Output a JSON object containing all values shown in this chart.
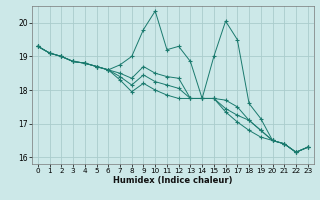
{
  "xlabel": "Humidex (Indice chaleur)",
  "ylabel": "",
  "xlim": [
    -0.5,
    23.5
  ],
  "ylim": [
    15.8,
    20.5
  ],
  "yticks": [
    16,
    17,
    18,
    19,
    20
  ],
  "xticks": [
    0,
    1,
    2,
    3,
    4,
    5,
    6,
    7,
    8,
    9,
    10,
    11,
    12,
    13,
    14,
    15,
    16,
    17,
    18,
    19,
    20,
    21,
    22,
    23
  ],
  "bg_color": "#cce8e8",
  "grid_color": "#aacccc",
  "line_color": "#1a7a6e",
  "lines": [
    [
      19.3,
      19.1,
      19.0,
      18.85,
      18.8,
      18.7,
      18.6,
      18.75,
      19.0,
      19.8,
      20.35,
      19.2,
      19.3,
      18.85,
      17.75,
      19.0,
      20.05,
      19.5,
      17.6,
      17.15,
      16.5,
      16.4,
      16.15,
      16.3
    ],
    [
      19.3,
      19.1,
      19.0,
      18.85,
      18.8,
      18.7,
      18.6,
      18.5,
      18.35,
      18.7,
      18.5,
      18.4,
      18.35,
      17.75,
      17.75,
      17.75,
      17.7,
      17.5,
      17.1,
      16.8,
      16.5,
      16.4,
      16.15,
      16.3
    ],
    [
      19.3,
      19.1,
      19.0,
      18.85,
      18.8,
      18.7,
      18.6,
      18.4,
      18.15,
      18.45,
      18.25,
      18.15,
      18.05,
      17.75,
      17.75,
      17.75,
      17.45,
      17.25,
      17.1,
      16.8,
      16.5,
      16.4,
      16.15,
      16.3
    ],
    [
      19.3,
      19.1,
      19.0,
      18.85,
      18.8,
      18.7,
      18.6,
      18.3,
      17.95,
      18.2,
      18.0,
      17.85,
      17.75,
      17.75,
      17.75,
      17.75,
      17.35,
      17.05,
      16.8,
      16.6,
      16.5,
      16.4,
      16.15,
      16.3
    ]
  ]
}
